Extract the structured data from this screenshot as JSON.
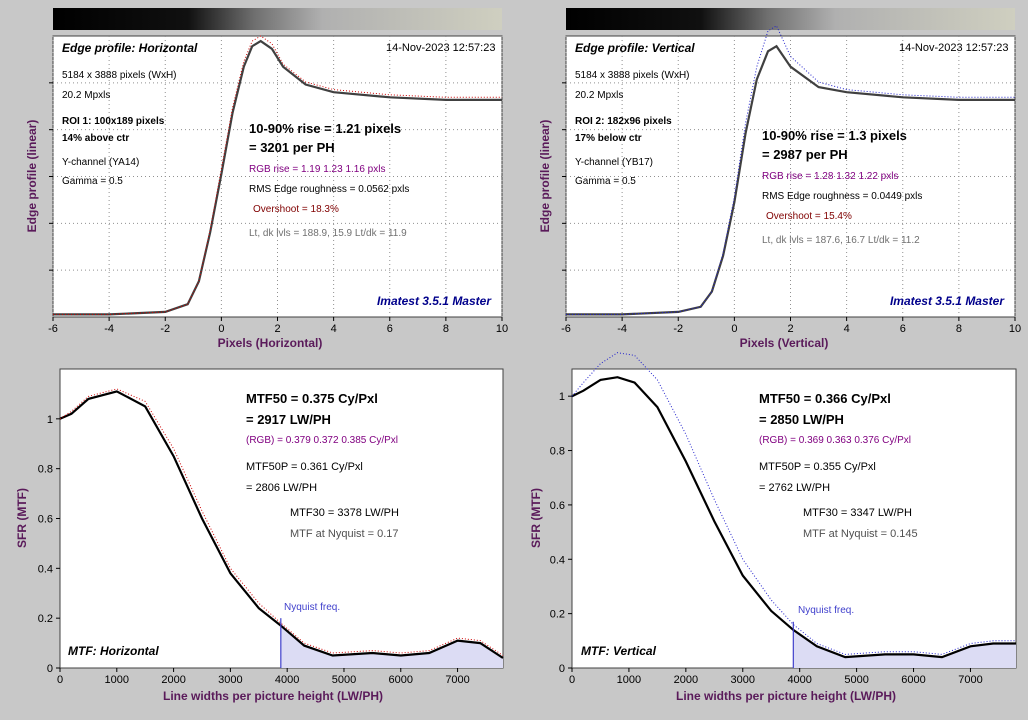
{
  "colors": {
    "background": "#c8c8c8",
    "plot_bg": "#ffffff",
    "axis_label": "#5a1a5a",
    "brand": "#00008b",
    "rgb_text": "#800080",
    "overshoot_text": "#800000",
    "levels_text": "#707070",
    "curve": "#404040",
    "mtf_curve": "#000000",
    "red_dots": "#cc0000",
    "blue_dots": "#2020cc",
    "nyquist": "#4040cc",
    "nyquist_fill": "#dcdcf4"
  },
  "panels": [
    {
      "title": "Edge profile: Horizontal",
      "timestamp": "14-Nov-2023 12:57:23",
      "info": [
        "5184 x 3888 pixels (WxH)",
        "20.2 Mpxls"
      ],
      "roi": "ROI 1:  100x189 pixels",
      "roi_pos": "14% above ctr",
      "channel": "Y-channel  (YA14)",
      "gamma": "Gamma = 0.5",
      "rise": "10-90% rise = 1.21 pixels",
      "per_ph": "= 3201 per PH",
      "rgb_rise": "RGB rise = 1.19  1.23  1.16 pxls",
      "rms": "RMS Edge roughness = 0.0562 pxls",
      "overshoot": "Overshoot = 18.3%",
      "levels": "Lt, dk lvls = 188.9, 15.9   Lt/dk = 11.9",
      "brand": "Imatest 3.5.1 Master",
      "xlabel": "Pixels (Horizontal)",
      "ylabel": "Edge profile (linear)"
    },
    {
      "title": "Edge profile: Vertical",
      "timestamp": "14-Nov-2023 12:57:23",
      "info": [
        "5184 x 3888 pixels (WxH)",
        "20.2 Mpxls"
      ],
      "roi": "ROI 2:  182x96 pixels",
      "roi_pos": "17% below ctr",
      "channel": "Y-channel  (YB17)",
      "gamma": "Gamma = 0.5",
      "rise": "10-90% rise = 1.3 pixels",
      "per_ph": "= 2987 per PH",
      "rgb_rise": "RGB rise = 1.28  1.32  1.22 pxls",
      "rms": "RMS Edge roughness = 0.0449 pxls",
      "overshoot": "Overshoot = 15.4%",
      "levels": "Lt, dk lvls = 187.6, 16.7   Lt/dk = 11.2",
      "brand": "Imatest 3.5.1 Master",
      "xlabel": "Pixels (Vertical)",
      "ylabel": "Edge profile (linear)"
    },
    {
      "title": "MTF: Horizontal",
      "mtf50": "MTF50 = 0.375 Cy/Pxl",
      "mtf50_lw": "= 2917 LW/PH",
      "rgb": "(RGB) = 0.379  0.372  0.385 Cy/Pxl",
      "mtf50p": "MTF50P = 0.361 Cy/Pxl",
      "mtf50p_lw": "= 2806 LW/PH",
      "mtf30": "MTF30 = 3378 LW/PH",
      "nyq_val": "MTF at Nyquist = 0.17",
      "nyquist_label": "Nyquist freq.",
      "xlabel": "Line widths per picture height (LW/PH)",
      "ylabel": "SFR (MTF)"
    },
    {
      "title": "MTF: Vertical",
      "mtf50": "MTF50 = 0.366 Cy/Pxl",
      "mtf50_lw": "= 2850 LW/PH",
      "rgb": "(RGB) = 0.369  0.363  0.376 Cy/Pxl",
      "mtf50p": "MTF50P = 0.355 Cy/Pxl",
      "mtf50p_lw": "= 2762 LW/PH",
      "mtf30": "MTF30 = 3347 LW/PH",
      "nyq_val": "MTF at Nyquist = 0.145",
      "nyquist_label": "Nyquist freq.",
      "xlabel": "Line widths per picture height (LW/PH)",
      "ylabel": "SFR (MTF)"
    }
  ],
  "chart_data": [
    {
      "type": "line",
      "title": "Edge profile: Horizontal",
      "xlabel": "Pixels (Horizontal)",
      "ylabel": "Edge profile (linear)",
      "xlim": [
        -6,
        10
      ],
      "ylim": [
        0,
        1.1
      ],
      "xticks": [
        -6,
        -4,
        -2,
        0,
        2,
        4,
        6,
        8,
        10
      ],
      "grid": true,
      "series": [
        {
          "color": "#404040",
          "x": [
            -6,
            -4,
            -2,
            -1.2,
            -0.8,
            -0.4,
            0,
            0.4,
            0.8,
            1.1,
            1.4,
            1.8,
            2.2,
            3,
            4,
            6,
            8,
            10
          ],
          "y": [
            0.01,
            0.01,
            0.02,
            0.05,
            0.14,
            0.33,
            0.56,
            0.8,
            0.98,
            1.06,
            1.08,
            1.05,
            0.98,
            0.91,
            0.88,
            0.86,
            0.85,
            0.85
          ]
        },
        {
          "color": "#cc0000",
          "x": [
            -6,
            -4,
            -2,
            -1.2,
            -0.8,
            -0.4,
            0,
            0.4,
            0.8,
            1.1,
            1.4,
            1.8,
            2.2,
            3,
            4,
            6,
            8,
            10
          ],
          "y": [
            0.01,
            0.01,
            0.02,
            0.05,
            0.14,
            0.34,
            0.58,
            0.82,
            1.0,
            1.08,
            1.1,
            1.07,
            0.99,
            0.92,
            0.89,
            0.87,
            0.86,
            0.86
          ]
        }
      ]
    },
    {
      "type": "line",
      "title": "Edge profile: Vertical",
      "xlabel": "Pixels (Vertical)",
      "ylabel": "Edge profile (linear)",
      "xlim": [
        -6,
        10
      ],
      "ylim": [
        0,
        1.1
      ],
      "xticks": [
        -6,
        -4,
        -2,
        0,
        2,
        4,
        6,
        8,
        10
      ],
      "grid": true,
      "series": [
        {
          "color": "#404040",
          "x": [
            -6,
            -4,
            -2,
            -1.2,
            -0.8,
            -0.4,
            0,
            0.4,
            0.8,
            1.2,
            1.5,
            2,
            3,
            4,
            6,
            8,
            10
          ],
          "y": [
            0.01,
            0.01,
            0.02,
            0.04,
            0.1,
            0.24,
            0.45,
            0.72,
            0.93,
            1.04,
            1.06,
            0.98,
            0.9,
            0.88,
            0.86,
            0.85,
            0.85
          ]
        },
        {
          "color": "#2020cc",
          "x": [
            -6,
            -4,
            -2,
            -1.2,
            -0.8,
            -0.4,
            0,
            0.4,
            0.8,
            1.2,
            1.5,
            2,
            3,
            4,
            6,
            8,
            10
          ],
          "y": [
            0.01,
            0.01,
            0.02,
            0.04,
            0.1,
            0.25,
            0.47,
            0.76,
            0.98,
            1.12,
            1.14,
            1.02,
            0.92,
            0.89,
            0.87,
            0.86,
            0.86
          ]
        }
      ]
    },
    {
      "type": "line",
      "title": "MTF: Horizontal",
      "xlabel": "Line widths per picture height (LW/PH)",
      "ylabel": "SFR (MTF)",
      "xlim": [
        0,
        7800
      ],
      "ylim": [
        0,
        1.2
      ],
      "xticks": [
        0,
        1000,
        2000,
        3000,
        4000,
        5000,
        6000,
        7000
      ],
      "yticks": [
        0,
        0.2,
        0.4,
        0.6,
        0.8,
        1
      ],
      "grid": false,
      "nyquist_x": 3888,
      "series": [
        {
          "color": "#000000",
          "x": [
            0,
            200,
            500,
            1000,
            1500,
            2000,
            2500,
            3000,
            3500,
            3888,
            4300,
            4800,
            5500,
            6000,
            6500,
            7000,
            7400,
            7800
          ],
          "y": [
            1.0,
            1.02,
            1.08,
            1.11,
            1.05,
            0.85,
            0.6,
            0.38,
            0.24,
            0.17,
            0.09,
            0.05,
            0.06,
            0.05,
            0.06,
            0.11,
            0.1,
            0.04
          ]
        },
        {
          "color": "#cc0000",
          "x": [
            0,
            200,
            500,
            1000,
            1500,
            2000,
            2500,
            3000,
            3500,
            3888,
            4300,
            4800,
            5500,
            6000,
            6500,
            7000,
            7400,
            7800
          ],
          "y": [
            1.0,
            1.03,
            1.09,
            1.12,
            1.07,
            0.88,
            0.63,
            0.4,
            0.26,
            0.18,
            0.1,
            0.06,
            0.07,
            0.06,
            0.07,
            0.12,
            0.11,
            0.05
          ]
        }
      ]
    },
    {
      "type": "line",
      "title": "MTF: Vertical",
      "xlabel": "Line widths per picture height (LW/PH)",
      "ylabel": "SFR (MTF)",
      "xlim": [
        0,
        7800
      ],
      "ylim": [
        0,
        1.1
      ],
      "xticks": [
        0,
        1000,
        2000,
        3000,
        4000,
        5000,
        6000,
        7000
      ],
      "yticks": [
        0,
        0.2,
        0.4,
        0.6,
        0.8,
        1
      ],
      "grid": false,
      "nyquist_x": 3888,
      "series": [
        {
          "color": "#000000",
          "x": [
            0,
            200,
            500,
            800,
            1100,
            1500,
            2000,
            2500,
            3000,
            3500,
            3888,
            4300,
            4800,
            5500,
            6000,
            6500,
            7000,
            7400,
            7800
          ],
          "y": [
            1.0,
            1.02,
            1.06,
            1.07,
            1.05,
            0.96,
            0.76,
            0.54,
            0.34,
            0.21,
            0.14,
            0.08,
            0.04,
            0.05,
            0.05,
            0.04,
            0.08,
            0.09,
            0.09
          ]
        },
        {
          "color": "#2020cc",
          "x": [
            0,
            200,
            500,
            800,
            1100,
            1500,
            2000,
            2500,
            3000,
            3500,
            3888,
            4300,
            4800,
            5500,
            6000,
            6500,
            7000,
            7400,
            7800
          ],
          "y": [
            1.0,
            1.05,
            1.12,
            1.16,
            1.15,
            1.06,
            0.86,
            0.62,
            0.4,
            0.25,
            0.16,
            0.09,
            0.05,
            0.06,
            0.06,
            0.05,
            0.09,
            0.1,
            0.1
          ]
        }
      ]
    }
  ]
}
